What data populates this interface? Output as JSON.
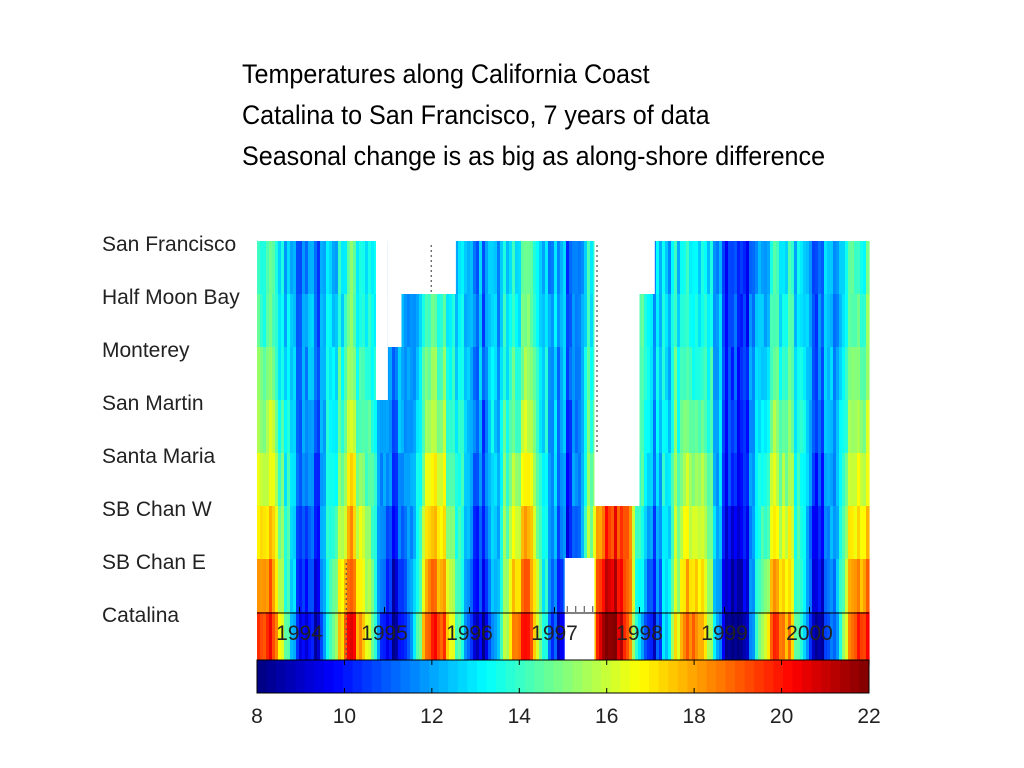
{
  "header": {
    "title": "Temperatures along California Coast",
    "subtitle_1": "Catalina to San Francisco, 7 years of data",
    "subtitle_2": "Seasonal change is as big as along-shore difference"
  },
  "chart_data": {
    "type": "heatmap",
    "title": "Temperatures along California Coast",
    "subtitle": [
      "Catalina to San Francisco, 7 years of data",
      "Seasonal change is as big as along-shore difference"
    ],
    "stations": [
      "San Francisco",
      "Half Moon Bay",
      "Monterey",
      "San Martin",
      "Santa Maria",
      "SB Chan W",
      "SB Chan E",
      "Catalina"
    ],
    "x_range": [
      1993.5,
      2000.7
    ],
    "x_ticks": [
      "1994",
      "1995",
      "1996",
      "1997",
      "1998",
      "1999",
      "2000"
    ],
    "colorbar": {
      "min": 8,
      "max": 22,
      "ticks": [
        8,
        10,
        12,
        14,
        16,
        18,
        20,
        22
      ],
      "colormap": "jet"
    },
    "approx_temperature_range": [
      9,
      22
    ],
    "missing_data": [
      {
        "stations": [
          "San Francisco",
          "Half Moon Bay",
          "Monterey"
        ],
        "from": 1994.9,
        "to": 1995.04
      },
      {
        "stations": [
          "San Francisco",
          "Half Moon Bay"
        ],
        "from": 1995.04,
        "to": 1995.2
      },
      {
        "stations": [
          "San Francisco"
        ],
        "from": 1995.2,
        "to": 1995.84
      },
      {
        "stations": [
          "SB Chan E",
          "Catalina"
        ],
        "from": 1997.12,
        "to": 1997.47
      },
      {
        "stations": [
          "San Francisco",
          "Half Moon Bay",
          "Monterey",
          "San Martin",
          "Santa Maria"
        ],
        "from": 1997.47,
        "to": 1998.0
      },
      {
        "stations": [
          "San Francisco"
        ],
        "from": 1998.0,
        "to": 1998.18
      }
    ],
    "dotted_markers": [
      {
        "x": 1994.55,
        "stations": [
          "SB Chan E",
          "Catalina"
        ]
      },
      {
        "x": 1995.55,
        "stations": [
          "San Francisco"
        ]
      },
      {
        "x": 1997.5,
        "stations": [
          "San Francisco",
          "Half Moon Bay",
          "Monterey",
          "San Martin"
        ]
      }
    ],
    "grid": false
  }
}
